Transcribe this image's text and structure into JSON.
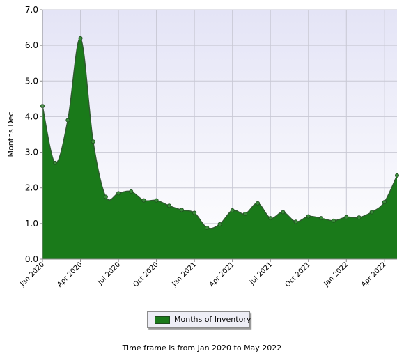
{
  "chart_data": {
    "type": "area",
    "title": "",
    "xlabel": "",
    "ylabel": "Months Dec",
    "ylim": [
      0,
      7
    ],
    "yticks": [
      "0.0",
      "1.0",
      "2.0",
      "3.0",
      "4.0",
      "5.0",
      "6.0",
      "7.0"
    ],
    "xtick_labels": [
      "Jan 2020",
      "Apr 2020",
      "Jul 2020",
      "Oct 2020",
      "Jan 2021",
      "Apr 2021",
      "Jul 2021",
      "Oct 2021",
      "Jan 2022",
      "Apr 2022"
    ],
    "grid": true,
    "legend_position": "bottom-center",
    "series": [
      {
        "name": "Months of Inventory",
        "color": "#1a7a1a",
        "x": [
          "2020-01",
          "2020-02",
          "2020-03",
          "2020-04",
          "2020-05",
          "2020-06",
          "2020-07",
          "2020-08",
          "2020-09",
          "2020-10",
          "2020-11",
          "2020-12",
          "2021-01",
          "2021-02",
          "2021-03",
          "2021-04",
          "2021-05",
          "2021-06",
          "2021-07",
          "2021-08",
          "2021-09",
          "2021-10",
          "2021-11",
          "2021-12",
          "2022-01",
          "2022-02",
          "2022-03",
          "2022-04",
          "2022-05"
        ],
        "values": [
          4.3,
          2.7,
          3.9,
          6.2,
          3.3,
          1.75,
          1.85,
          1.9,
          1.65,
          1.65,
          1.5,
          1.38,
          1.3,
          0.88,
          0.98,
          1.37,
          1.27,
          1.57,
          1.15,
          1.32,
          1.05,
          1.2,
          1.15,
          1.08,
          1.18,
          1.17,
          1.32,
          1.6,
          2.35
        ]
      }
    ]
  },
  "legend": {
    "label": "Months of Inventory"
  },
  "footnote": "Time frame is from Jan 2020 to May 2022"
}
